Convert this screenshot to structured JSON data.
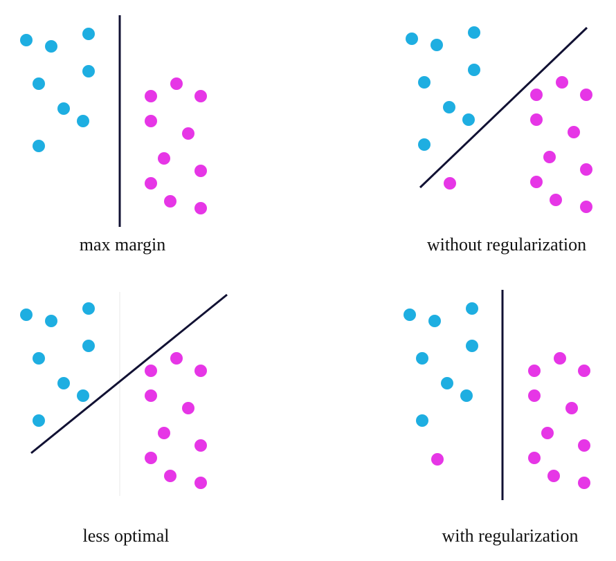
{
  "colors": {
    "class_a": "#1eaee1",
    "class_b": "#e636e6",
    "boundary": "#111133",
    "faint_guide": "#f0f0f0"
  },
  "panels": [
    {
      "caption": "max margin",
      "boundary": "vertical",
      "outlier_a": false,
      "outlier_b": false,
      "faint_guide": false
    },
    {
      "caption": "without regularization",
      "boundary": "diagonal",
      "outlier_a": false,
      "outlier_b": true,
      "faint_guide": false
    },
    {
      "caption": "less optimal",
      "boundary": "diagonal",
      "outlier_a": false,
      "outlier_b": false,
      "faint_guide": true
    },
    {
      "caption": "with regularization",
      "boundary": "vertical",
      "outlier_a": false,
      "outlier_b": true,
      "faint_guide": false
    }
  ]
}
